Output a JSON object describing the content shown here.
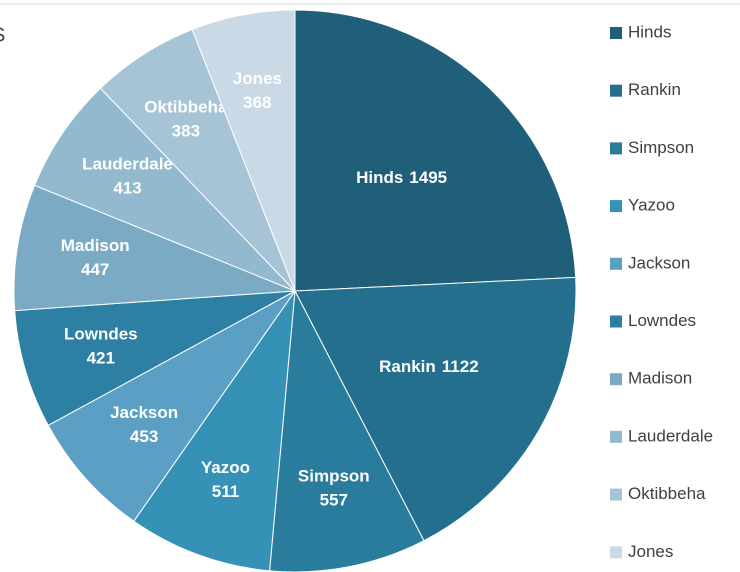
{
  "chart_data": {
    "type": "pie",
    "title": "S",
    "categories": [
      "Hinds",
      "Rankin",
      "Simpson",
      "Yazoo",
      "Jackson",
      "Lowndes",
      "Madison",
      "Lauderdale",
      "Oktibbeha",
      "Jones"
    ],
    "values": [
      1495,
      1122,
      557,
      511,
      453,
      421,
      447,
      413,
      383,
      368
    ],
    "colors": [
      "#1f5f7a",
      "#246f8e",
      "#2a7c9c",
      "#3591b6",
      "#5b9fc4",
      "#2d80a3",
      "#7aaac4",
      "#93b9cf",
      "#a7c4d7",
      "#c9d9e6"
    ],
    "legend": "right"
  }
}
